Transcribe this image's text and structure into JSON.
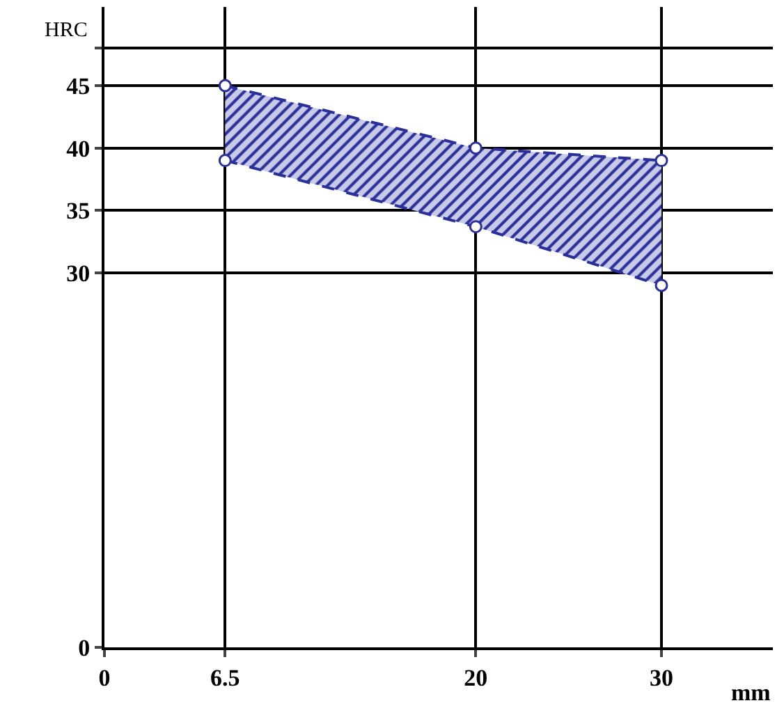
{
  "chart_data": {
    "type": "line",
    "xlabel": "mm",
    "ylabel": "HRC",
    "xlim": [
      0,
      36
    ],
    "xticks": [
      0,
      6.5,
      20,
      30
    ],
    "ylim": [
      0,
      51.3
    ],
    "yticks": [
      0,
      30,
      35,
      40,
      45,
      {
        "value": 48,
        "label": null
      }
    ],
    "grid": true,
    "marker": "circle",
    "line_style": "dashed",
    "series": [
      {
        "type": "line",
        "color": "#2a2f9a",
        "x": [
          6.5,
          20,
          30
        ],
        "values": [
          39,
          33.7,
          29
        ]
      },
      {
        "type": "area",
        "color": "#2a2f9a",
        "x": [
          6.5,
          20,
          30
        ],
        "values": [
          45,
          40,
          39
        ]
      }
    ]
  }
}
